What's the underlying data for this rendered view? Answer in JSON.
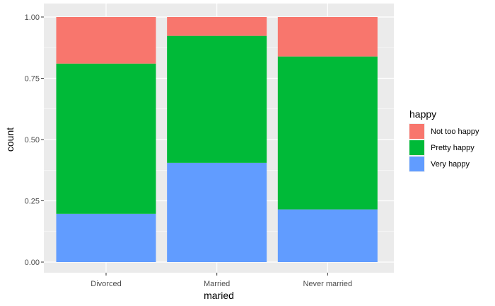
{
  "chart_data": {
    "type": "bar",
    "stacked": true,
    "normalized": true,
    "categories": [
      "Divorced",
      "Married",
      "Never married"
    ],
    "series": [
      {
        "name": "Very happy",
        "color": "#619CFF",
        "values": [
          0.197,
          0.405,
          0.215
        ]
      },
      {
        "name": "Pretty happy",
        "color": "#00BA38",
        "values": [
          0.613,
          0.518,
          0.624
        ]
      },
      {
        "name": "Not too happy",
        "color": "#F8766D",
        "values": [
          0.19,
          0.077,
          0.161
        ]
      }
    ],
    "legend_order": [
      "Not too happy",
      "Pretty happy",
      "Very happy"
    ],
    "xlabel": "maried",
    "ylabel": "count",
    "ylim": [
      0,
      1
    ],
    "yticks": [
      0,
      0.25,
      0.5,
      0.75,
      1
    ],
    "ytick_labels": [
      "0.00",
      "0.25",
      "0.50",
      "0.75",
      "1.00"
    ],
    "legend_title": "happy",
    "legend_position": "right",
    "grid": true,
    "panel_background": "#EBEBEB",
    "grid_color": "#FFFFFF"
  }
}
